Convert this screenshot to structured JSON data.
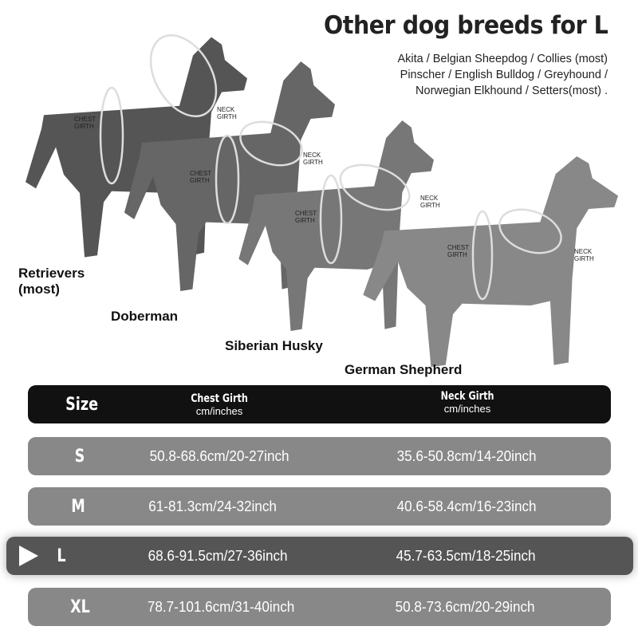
{
  "title": "Other dog breeds for L",
  "breeds_lines": [
    "Akita / Belgian Sheepdog / Collies (most)",
    "Pinscher / English Bulldog / Greyhound /",
    "Norwegian Elkhound / Setters(most) ."
  ],
  "dogs": [
    {
      "name_lines": [
        "Retrievers",
        "(most)"
      ],
      "color": "#555555"
    },
    {
      "name_lines": [
        "Doberman"
      ],
      "color": "#666666"
    },
    {
      "name_lines": [
        "Siberian Husky"
      ],
      "color": "#777777"
    },
    {
      "name_lines": [
        "German Shepherd"
      ],
      "color": "#888888"
    }
  ],
  "girth_labels": {
    "chest": [
      "CHEST",
      "GIRTH"
    ],
    "neck": [
      "NECK",
      "GIRTH"
    ]
  },
  "table": {
    "header": {
      "size": "Size",
      "chest_title": "Chest Girth",
      "chest_unit": "cm/inches",
      "neck_title": "Neck Girth",
      "neck_unit": "cm/inches"
    },
    "rows": [
      {
        "size": "S",
        "chest": "50.8-68.6cm/20-27inch",
        "neck": "35.6-50.8cm/14-20inch",
        "selected": false
      },
      {
        "size": "M",
        "chest": "61-81.3cm/24-32inch",
        "neck": "40.6-58.4cm/16-23inch",
        "selected": false
      },
      {
        "size": "L",
        "chest": "68.6-91.5cm/27-36inch",
        "neck": "45.7-63.5cm/18-25inch",
        "selected": true
      },
      {
        "size": "XL",
        "chest": "78.7-101.6cm/31-40inch",
        "neck": "50.8-73.6cm/20-29inch",
        "selected": false
      }
    ],
    "colors": {
      "header": "#111111",
      "row": "#888888",
      "selected_row": "#555555"
    }
  }
}
